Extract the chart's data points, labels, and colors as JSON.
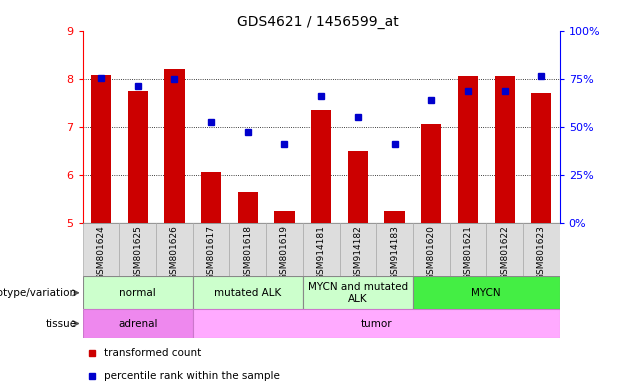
{
  "title": "GDS4621 / 1456599_at",
  "samples": [
    "GSM801624",
    "GSM801625",
    "GSM801626",
    "GSM801617",
    "GSM801618",
    "GSM801619",
    "GSM914181",
    "GSM914182",
    "GSM914183",
    "GSM801620",
    "GSM801621",
    "GSM801622",
    "GSM801623"
  ],
  "bar_values": [
    8.08,
    7.75,
    8.2,
    6.05,
    5.65,
    5.25,
    7.35,
    6.5,
    5.25,
    7.05,
    8.05,
    8.05,
    7.7
  ],
  "dot_values": [
    8.02,
    7.85,
    8.0,
    7.1,
    6.9,
    6.65,
    7.65,
    7.2,
    6.65,
    7.55,
    7.75,
    7.75,
    8.05
  ],
  "bar_color": "#cc0000",
  "dot_color": "#0000cc",
  "ylim_left": [
    5,
    9
  ],
  "ylim_right": [
    0,
    100
  ],
  "yticks_left": [
    5,
    6,
    7,
    8,
    9
  ],
  "yticks_right": [
    0,
    25,
    50,
    75,
    100
  ],
  "grid_values": [
    6,
    7,
    8
  ],
  "groups": [
    {
      "label": "normal",
      "start": 0,
      "end": 3,
      "color": "#ccffcc"
    },
    {
      "label": "mutated ALK",
      "start": 3,
      "end": 6,
      "color": "#ccffcc"
    },
    {
      "label": "MYCN and mutated\nALK",
      "start": 6,
      "end": 9,
      "color": "#ccffcc"
    },
    {
      "label": "MYCN",
      "start": 9,
      "end": 13,
      "color": "#44ee44"
    }
  ],
  "tissue_groups": [
    {
      "label": "adrenal",
      "start": 0,
      "end": 3,
      "color": "#ee88ee"
    },
    {
      "label": "tumor",
      "start": 3,
      "end": 13,
      "color": "#ffaaff"
    }
  ],
  "genotype_label": "genotype/variation",
  "tissue_label": "tissue",
  "legend_items": [
    {
      "label": "transformed count",
      "color": "#cc0000"
    },
    {
      "label": "percentile rank within the sample",
      "color": "#0000cc"
    }
  ]
}
